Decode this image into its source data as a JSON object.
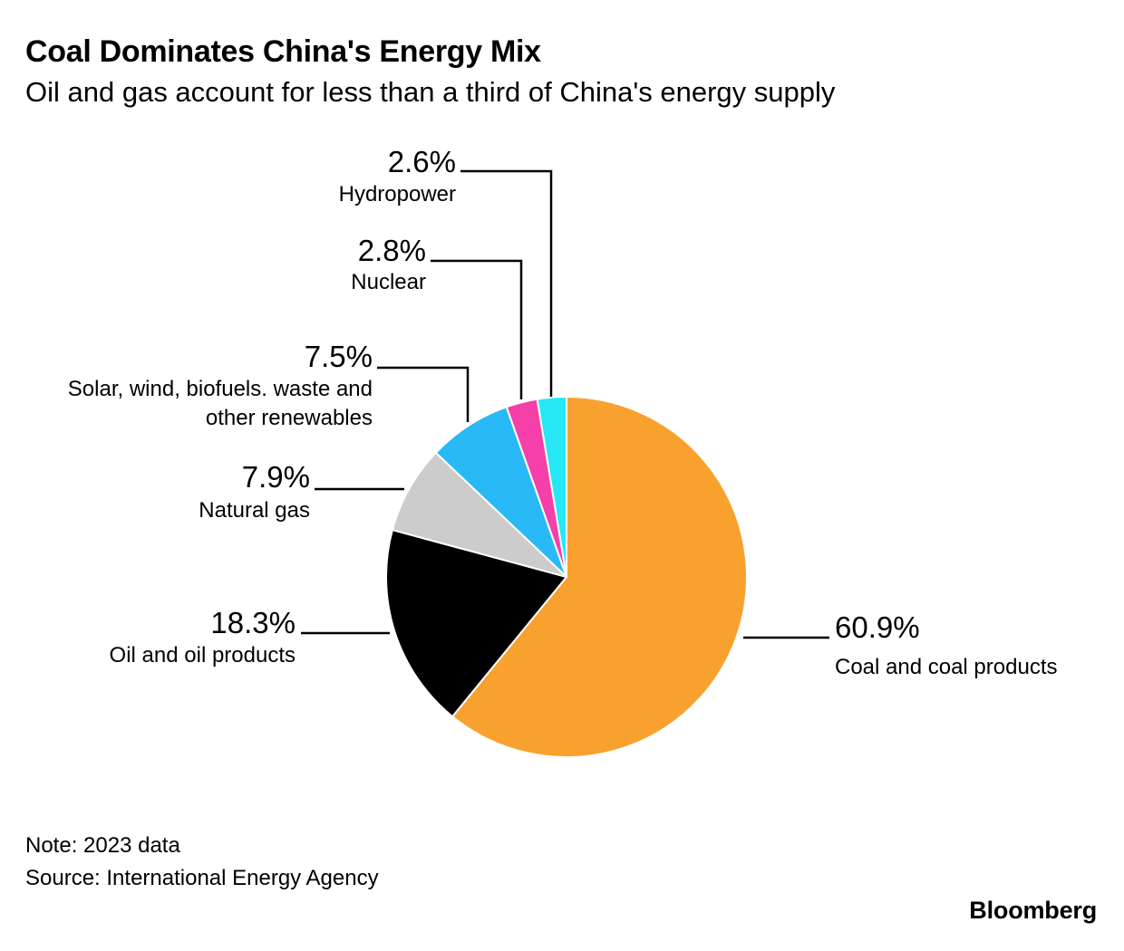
{
  "header": {
    "title": "Coal Dominates China's Energy Mix",
    "subtitle": "Oil and gas account for less than a third of China's energy supply"
  },
  "footer": {
    "note": "Note: 2023 data",
    "source": "Source: International Energy Agency",
    "brand": "Bloomberg"
  },
  "chart_data": {
    "type": "pie",
    "title": "Coal Dominates China's Energy Mix",
    "subtitle": "Oil and gas account for less than a third of China's energy supply",
    "start": "12 o'clock, clockwise",
    "slices": [
      {
        "label": "Coal and coal products",
        "value": 60.9,
        "value_label": "60.9%",
        "color": "#f9a12e"
      },
      {
        "label": "Oil and oil products",
        "value": 18.3,
        "value_label": "18.3%",
        "color": "#000000"
      },
      {
        "label": "Natural gas",
        "value": 7.9,
        "value_label": "7.9%",
        "color": "#cccccc"
      },
      {
        "label": "Solar, wind, biofuels. waste and other renewables",
        "label_lines": [
          "Solar, wind, biofuels. waste and",
          "other renewables"
        ],
        "value": 7.5,
        "value_label": "7.5%",
        "color": "#29b9f6"
      },
      {
        "label": "Nuclear",
        "value": 2.8,
        "value_label": "2.8%",
        "color": "#f53fa9"
      },
      {
        "label": "Hydropower",
        "value": 2.6,
        "value_label": "2.6%",
        "color": "#27e7f5"
      }
    ]
  }
}
